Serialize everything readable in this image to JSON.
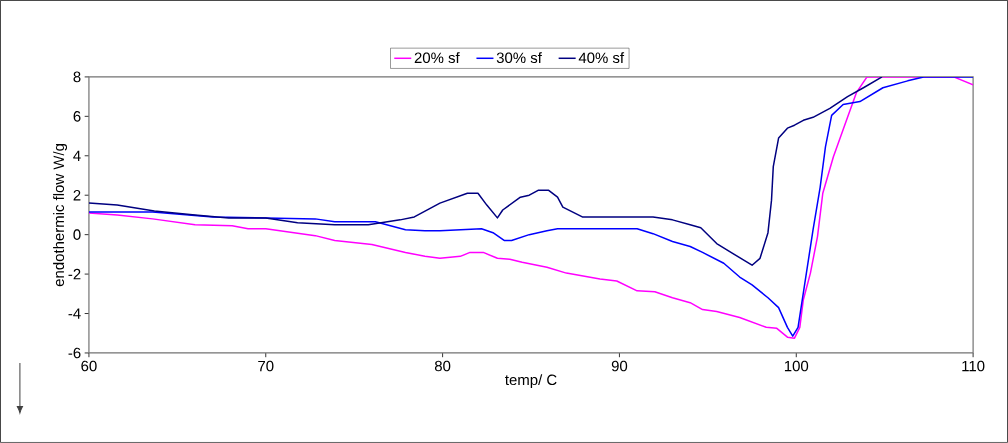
{
  "chart_data": {
    "type": "line",
    "xlabel": "temp/ C",
    "ylabel": "endothermic flow W/g",
    "xlim": [
      60,
      110
    ],
    "ylim": [
      -6,
      8
    ],
    "xticks": [
      60,
      70,
      80,
      90,
      100,
      110
    ],
    "yticks": [
      -6,
      -4,
      -2,
      0,
      2,
      4,
      6,
      8
    ],
    "legend": "top",
    "marker": "none",
    "series": [
      {
        "name": "20% sf",
        "color": "#ff00ff",
        "x": [
          60,
          61.6,
          63.6,
          66,
          68.1,
          69,
          70,
          72.8,
          73.9,
          76,
          77.9,
          79,
          79.85,
          81,
          81.55,
          82.3,
          83.1,
          83.8,
          84.5,
          85.9,
          87,
          88.9,
          89.85,
          91,
          92,
          93,
          94,
          94.7,
          95.5,
          96.8,
          98.3,
          98.9,
          99.5,
          99.9,
          100.2,
          100.4,
          100.8,
          101.2,
          101.5,
          102.1,
          102.9,
          103.4,
          104,
          108.9,
          110
        ],
        "values": [
          1.1,
          1.0,
          0.8,
          0.5,
          0.45,
          0.3,
          0.3,
          -0.05,
          -0.3,
          -0.5,
          -0.9,
          -1.1,
          -1.2,
          -1.1,
          -0.9,
          -0.9,
          -1.2,
          -1.25,
          -1.4,
          -1.65,
          -1.95,
          -2.25,
          -2.35,
          -2.85,
          -2.9,
          -3.2,
          -3.45,
          -3.8,
          -3.9,
          -4.2,
          -4.7,
          -4.75,
          -5.2,
          -5.25,
          -4.7,
          -3.3,
          -1.95,
          -0.1,
          2.1,
          3.95,
          5.95,
          7.2,
          8,
          8,
          7.6
        ]
      },
      {
        "name": "30% sf",
        "color": "#0000ff",
        "x": [
          60,
          63.6,
          67,
          70,
          72.8,
          73.9,
          76.2,
          77.9,
          79,
          79.85,
          82.2,
          82.85,
          83.5,
          83.9,
          84.9,
          85.9,
          86.5,
          91,
          91.9,
          93,
          94,
          94.7,
          95.9,
          96.8,
          97.5,
          98.4,
          99,
          99.5,
          99.8,
          100.1,
          100.4,
          100.95,
          101.35,
          101.65,
          102,
          102.65,
          103.6,
          104.9,
          106.3,
          107.2,
          110
        ],
        "values": [
          1.15,
          1.15,
          0.9,
          0.85,
          0.8,
          0.65,
          0.65,
          0.25,
          0.2,
          0.2,
          0.3,
          0.1,
          -0.3,
          -0.3,
          0,
          0.2,
          0.3,
          0.3,
          0.05,
          -0.35,
          -0.6,
          -0.9,
          -1.45,
          -2.15,
          -2.55,
          -3.2,
          -3.7,
          -4.7,
          -5.15,
          -4.7,
          -2.95,
          0.25,
          2.4,
          4.45,
          6.05,
          6.6,
          6.75,
          7.45,
          7.8,
          8,
          8
        ]
      },
      {
        "name": "40% sf",
        "color": "#000080",
        "x": [
          60,
          61.6,
          63.7,
          66,
          67.9,
          70,
          71.8,
          73.9,
          75.8,
          77.6,
          78.4,
          79.85,
          81.4,
          82,
          82.5,
          83.1,
          83.4,
          84.4,
          84.9,
          85.4,
          86,
          86.5,
          86.8,
          87.9,
          91.9,
          93,
          94,
          94.6,
          95.5,
          96.4,
          97.5,
          97.95,
          98.4,
          98.6,
          98.7,
          99,
          99.5,
          99.9,
          100.4,
          100.95,
          101.9,
          102.9,
          103.8,
          104.85
        ],
        "values": [
          1.6,
          1.5,
          1.2,
          1.0,
          0.85,
          0.85,
          0.6,
          0.5,
          0.5,
          0.75,
          0.9,
          1.6,
          2.1,
          2.1,
          1.5,
          0.85,
          1.25,
          1.9,
          2.0,
          2.25,
          2.25,
          1.9,
          1.4,
          0.9,
          0.9,
          0.75,
          0.5,
          0.35,
          -0.45,
          -0.95,
          -1.55,
          -1.2,
          0.1,
          1.75,
          3.45,
          4.9,
          5.4,
          5.55,
          5.8,
          5.95,
          6.4,
          7.0,
          7.45,
          8
        ]
      }
    ]
  }
}
